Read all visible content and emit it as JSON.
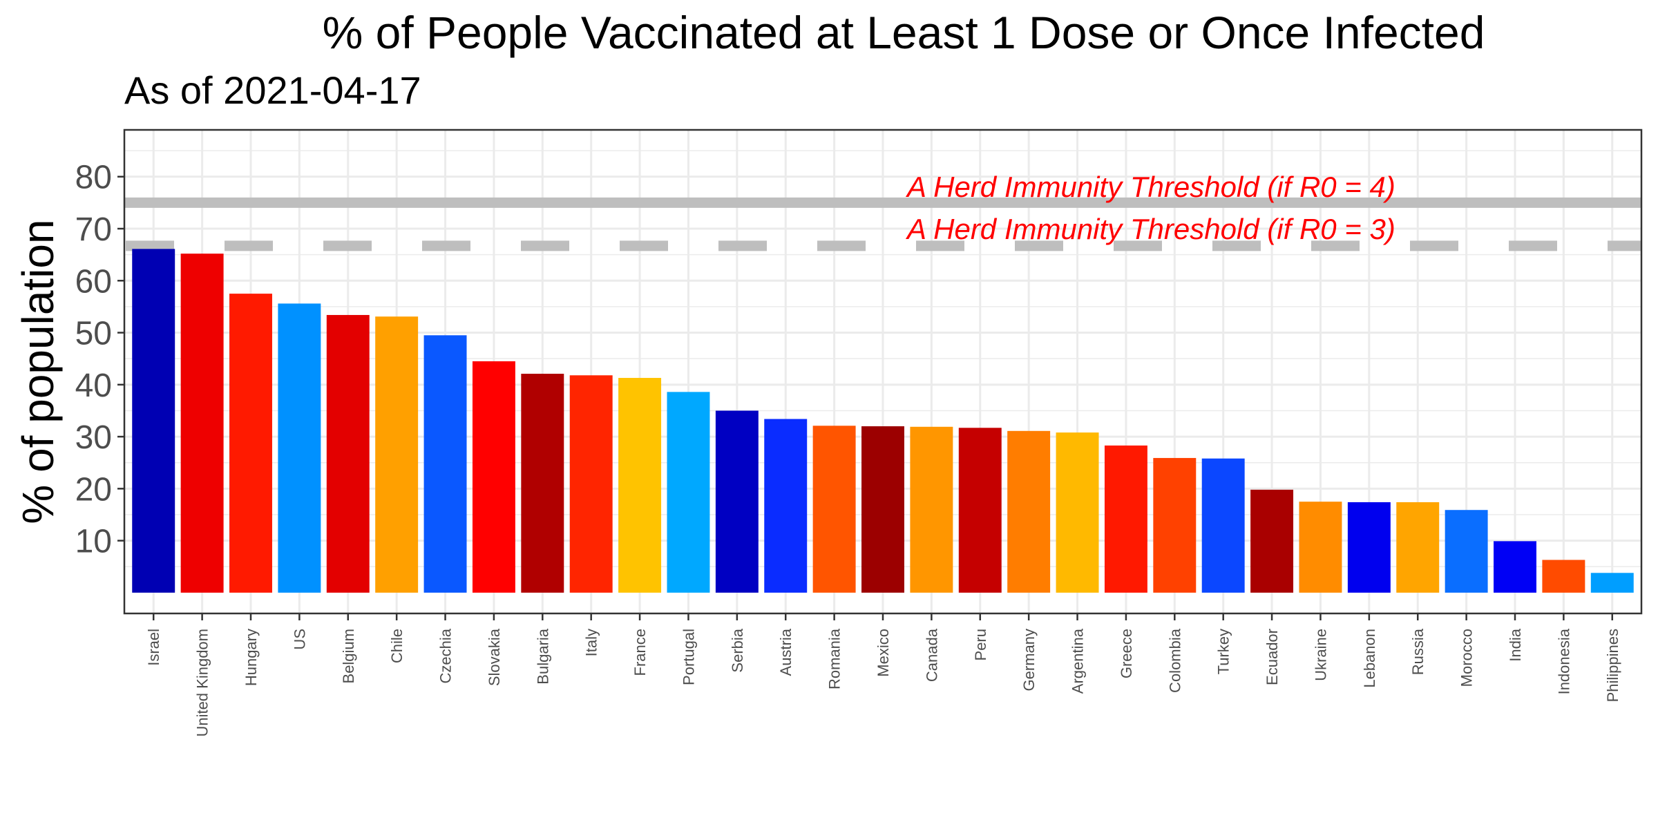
{
  "chart_data": {
    "type": "bar",
    "title": "% of People Vaccinated at Least 1 Dose or Once Infected",
    "subtitle": "As of 2021-04-17",
    "xlabel": "",
    "ylabel": "% of population",
    "ylim": [
      -4,
      89
    ],
    "yticks": [
      10,
      20,
      30,
      40,
      50,
      60,
      70,
      80
    ],
    "grid": true,
    "categories": [
      "Israel",
      "United Kingdom",
      "Hungary",
      "US",
      "Belgium",
      "Chile",
      "Czechia",
      "Slovakia",
      "Bulgaria",
      "Italy",
      "France",
      "Portugal",
      "Serbia",
      "Austria",
      "Romania",
      "Mexico",
      "Canada",
      "Peru",
      "Germany",
      "Argentina",
      "Greece",
      "Colombia",
      "Turkey",
      "Ecuador",
      "Ukraine",
      "Lebanon",
      "Russia",
      "Morocco",
      "India",
      "Indonesia",
      "Philippines"
    ],
    "values": [
      66.1,
      65.2,
      57.5,
      55.6,
      53.4,
      53.1,
      49.5,
      44.5,
      42.1,
      41.8,
      41.3,
      38.6,
      35.0,
      33.4,
      32.1,
      32.0,
      31.9,
      31.7,
      31.1,
      30.8,
      28.3,
      25.9,
      25.8,
      19.8,
      17.5,
      17.4,
      17.4,
      15.9,
      9.9,
      6.3,
      3.8
    ],
    "colors": [
      "#0000b3",
      "#ee0000",
      "#ff1a00",
      "#0091ff",
      "#e30000",
      "#ffa000",
      "#0a58ff",
      "#ff0000",
      "#b00000",
      "#ff2500",
      "#ffc300",
      "#00a8ff",
      "#0000c2",
      "#0a2cff",
      "#ff5500",
      "#9c0000",
      "#ff9600",
      "#c50000",
      "#ff7d00",
      "#ffb900",
      "#ff1900",
      "#ff4100",
      "#0b47ff",
      "#a90000",
      "#ff8c00",
      "#0000ee",
      "#ffa500",
      "#0a6eff",
      "#0000f5",
      "#ff4b00",
      "#009eff"
    ],
    "reference_lines": [
      {
        "value": 75,
        "style": "solid",
        "color": "#bebebe",
        "label": "A Herd Immunity Threshold (if R0 = 4)"
      },
      {
        "value": 66.7,
        "style": "dashed",
        "color": "#bebebe",
        "label": "A Herd Immunity Threshold (if R0 = 3)"
      }
    ],
    "annotation_color": "#ff0000"
  }
}
